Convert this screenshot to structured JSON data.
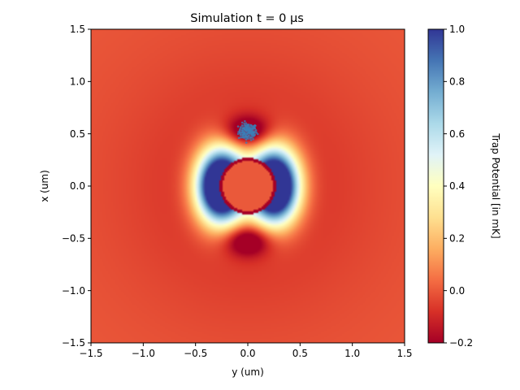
{
  "chart_data": {
    "type": "heatmap",
    "title": "Simulation t = 0 μs",
    "xlabel": "y (um)",
    "ylabel": "x (um)",
    "xlim": [
      -1.5,
      1.5
    ],
    "ylim": [
      -1.5,
      1.5
    ],
    "x_ticks": [
      -1.5,
      -1.0,
      -0.5,
      0.0,
      0.5,
      1.0,
      1.5
    ],
    "x_tick_labels": [
      "−1.5",
      "−1.0",
      "−0.5",
      "0.0",
      "0.5",
      "1.0",
      "1.5"
    ],
    "y_ticks": [
      -1.5,
      -1.0,
      -0.5,
      0.0,
      0.5,
      1.0,
      1.5
    ],
    "y_tick_labels": [
      "−1.5",
      "−1.0",
      "−0.5",
      "0.0",
      "0.5",
      "1.0",
      "1.5"
    ],
    "colorbar": {
      "label": "Trap Potential [in mK]",
      "range": [
        -0.2,
        1.0
      ],
      "colormap": "RdYlBu",
      "ticks": [
        -0.2,
        0.0,
        0.2,
        0.4,
        0.6,
        0.8,
        1.0
      ],
      "tick_labels": [
        "−0.2",
        "0.0",
        "0.2",
        "0.4",
        "0.6",
        "0.8",
        "1.0"
      ]
    },
    "features": {
      "repulsive_lobes": [
        {
          "y": -0.25,
          "x": 0.0
        },
        {
          "y": 0.25,
          "x": 0.0
        }
      ],
      "central_disc": {
        "y": 0.0,
        "x": 0.0,
        "radius": 0.24
      },
      "attractive_wells": [
        {
          "y": 0.0,
          "x": 0.52
        },
        {
          "y": 0.0,
          "x": -0.52
        }
      ],
      "atom_cloud": {
        "y": 0.0,
        "x": 0.52,
        "count": 120,
        "color": "#3a7fb8"
      }
    },
    "grid": false,
    "legend": "none"
  }
}
